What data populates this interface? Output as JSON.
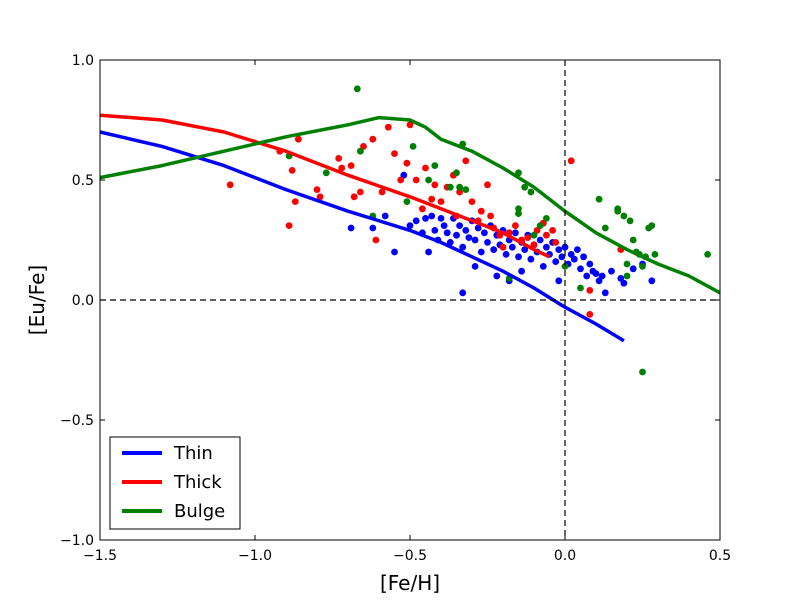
{
  "chart_data": {
    "type": "scatter",
    "title": "",
    "xlabel": "[Fe/H]",
    "ylabel": "[Eu/Fe]",
    "xlim": [
      -1.5,
      0.5
    ],
    "ylim": [
      -1.0,
      1.0
    ],
    "xticks": [
      -1.5,
      -1.0,
      -0.5,
      0.0,
      0.5
    ],
    "yticks": [
      -1.0,
      -0.5,
      0.0,
      0.5,
      1.0
    ],
    "xtick_labels": [
      "−1.5",
      "−1.0",
      "−0.5",
      "0.0",
      "0.5"
    ],
    "ytick_labels": [
      "−1.0",
      "−0.5",
      "0.0",
      "0.5",
      "1.0"
    ],
    "reference_lines": {
      "x": 0.0,
      "y": 0.0,
      "style": "dashed"
    },
    "legend": {
      "position": "lower-left",
      "entries": [
        {
          "label": "Thin",
          "color": "#0000ff"
        },
        {
          "label": "Thick",
          "color": "#ff0000"
        },
        {
          "label": "Bulge",
          "color": "#008000"
        }
      ]
    },
    "series": [
      {
        "name": "Thin",
        "color": "#0000ff",
        "curve": [
          [
            -1.5,
            0.7
          ],
          [
            -1.3,
            0.64
          ],
          [
            -1.1,
            0.56
          ],
          [
            -0.9,
            0.46
          ],
          [
            -0.7,
            0.37
          ],
          [
            -0.5,
            0.29
          ],
          [
            -0.4,
            0.24
          ],
          [
            -0.3,
            0.18
          ],
          [
            -0.2,
            0.12
          ],
          [
            -0.1,
            0.05
          ],
          [
            0.0,
            -0.03
          ],
          [
            0.1,
            -0.1
          ],
          [
            0.19,
            -0.17
          ]
        ],
        "points": [
          [
            -0.69,
            0.3
          ],
          [
            -0.62,
            0.3
          ],
          [
            -0.58,
            0.35
          ],
          [
            -0.55,
            0.2
          ],
          [
            -0.52,
            0.52
          ],
          [
            -0.5,
            0.31
          ],
          [
            -0.48,
            0.33
          ],
          [
            -0.46,
            0.28
          ],
          [
            -0.45,
            0.34
          ],
          [
            -0.44,
            0.2
          ],
          [
            -0.43,
            0.35
          ],
          [
            -0.42,
            0.29
          ],
          [
            -0.41,
            0.25
          ],
          [
            -0.4,
            0.34
          ],
          [
            -0.39,
            0.31
          ],
          [
            -0.38,
            0.28
          ],
          [
            -0.37,
            0.24
          ],
          [
            -0.36,
            0.34
          ],
          [
            -0.35,
            0.27
          ],
          [
            -0.34,
            0.31
          ],
          [
            -0.33,
            0.22
          ],
          [
            -0.32,
            0.29
          ],
          [
            -0.31,
            0.26
          ],
          [
            -0.3,
            0.33
          ],
          [
            -0.29,
            0.25
          ],
          [
            -0.28,
            0.3
          ],
          [
            -0.27,
            0.2
          ],
          [
            -0.26,
            0.28
          ],
          [
            -0.25,
            0.24
          ],
          [
            -0.24,
            0.31
          ],
          [
            -0.23,
            0.21
          ],
          [
            -0.22,
            0.27
          ],
          [
            -0.21,
            0.23
          ],
          [
            -0.2,
            0.29
          ],
          [
            -0.19,
            0.19
          ],
          [
            -0.18,
            0.25
          ],
          [
            -0.17,
            0.22
          ],
          [
            -0.16,
            0.28
          ],
          [
            -0.15,
            0.18
          ],
          [
            -0.14,
            0.24
          ],
          [
            -0.13,
            0.21
          ],
          [
            -0.12,
            0.27
          ],
          [
            -0.11,
            0.17
          ],
          [
            -0.1,
            0.23
          ],
          [
            -0.09,
            0.2
          ],
          [
            -0.08,
            0.25
          ],
          [
            -0.07,
            0.14
          ],
          [
            -0.06,
            0.22
          ],
          [
            -0.05,
            0.19
          ],
          [
            -0.04,
            0.24
          ],
          [
            -0.03,
            0.16
          ],
          [
            -0.02,
            0.21
          ],
          [
            -0.01,
            0.18
          ],
          [
            0.0,
            0.22
          ],
          [
            0.01,
            0.15
          ],
          [
            0.02,
            0.19
          ],
          [
            0.03,
            0.17
          ],
          [
            0.04,
            0.21
          ],
          [
            0.05,
            0.13
          ],
          [
            0.06,
            0.18
          ],
          [
            0.07,
            0.1
          ],
          [
            0.08,
            0.15
          ],
          [
            0.09,
            0.12
          ],
          [
            0.1,
            0.11
          ],
          [
            0.11,
            0.08
          ],
          [
            0.12,
            0.1
          ],
          [
            0.13,
            0.03
          ],
          [
            0.15,
            0.12
          ],
          [
            0.18,
            0.09
          ],
          [
            0.19,
            0.07
          ],
          [
            0.22,
            0.13
          ],
          [
            0.25,
            0.15
          ],
          [
            -0.33,
            0.03
          ],
          [
            -0.22,
            0.1
          ],
          [
            -0.18,
            0.08
          ],
          [
            -0.02,
            0.08
          ],
          [
            0.28,
            0.08
          ],
          [
            -0.14,
            0.12
          ],
          [
            -0.29,
            0.14
          ]
        ]
      },
      {
        "name": "Thick",
        "color": "#ff0000",
        "curve": [
          [
            -1.5,
            0.77
          ],
          [
            -1.3,
            0.75
          ],
          [
            -1.1,
            0.7
          ],
          [
            -0.9,
            0.62
          ],
          [
            -0.7,
            0.52
          ],
          [
            -0.5,
            0.43
          ],
          [
            -0.4,
            0.38
          ],
          [
            -0.3,
            0.33
          ],
          [
            -0.2,
            0.28
          ],
          [
            -0.1,
            0.21
          ],
          [
            -0.05,
            0.18
          ]
        ],
        "points": [
          [
            -1.08,
            0.48
          ],
          [
            -0.92,
            0.62
          ],
          [
            -0.89,
            0.31
          ],
          [
            -0.88,
            0.54
          ],
          [
            -0.87,
            0.41
          ],
          [
            -0.86,
            0.67
          ],
          [
            -0.8,
            0.46
          ],
          [
            -0.79,
            0.43
          ],
          [
            -0.73,
            0.59
          ],
          [
            -0.72,
            0.55
          ],
          [
            -0.69,
            0.56
          ],
          [
            -0.68,
            0.43
          ],
          [
            -0.66,
            0.45
          ],
          [
            -0.65,
            0.64
          ],
          [
            -0.62,
            0.67
          ],
          [
            -0.61,
            0.25
          ],
          [
            -0.59,
            0.45
          ],
          [
            -0.57,
            0.72
          ],
          [
            -0.55,
            0.61
          ],
          [
            -0.53,
            0.5
          ],
          [
            -0.51,
            0.57
          ],
          [
            -0.5,
            0.73
          ],
          [
            -0.48,
            0.5
          ],
          [
            -0.46,
            0.38
          ],
          [
            -0.45,
            0.55
          ],
          [
            -0.43,
            0.42
          ],
          [
            -0.42,
            0.48
          ],
          [
            -0.4,
            0.41
          ],
          [
            -0.38,
            0.47
          ],
          [
            -0.36,
            0.52
          ],
          [
            -0.35,
            0.35
          ],
          [
            -0.34,
            0.45
          ],
          [
            -0.32,
            0.58
          ],
          [
            -0.3,
            0.41
          ],
          [
            -0.28,
            0.33
          ],
          [
            -0.27,
            0.37
          ],
          [
            -0.25,
            0.48
          ],
          [
            -0.24,
            0.35
          ],
          [
            -0.23,
            0.3
          ],
          [
            -0.21,
            0.27
          ],
          [
            -0.2,
            0.22
          ],
          [
            -0.18,
            0.28
          ],
          [
            -0.16,
            0.31
          ],
          [
            -0.14,
            0.25
          ],
          [
            -0.12,
            0.26
          ],
          [
            -0.1,
            0.23
          ],
          [
            -0.09,
            0.29
          ],
          [
            -0.07,
            0.32
          ],
          [
            -0.06,
            0.27
          ],
          [
            -0.04,
            0.29
          ],
          [
            -0.03,
            0.24
          ],
          [
            0.02,
            0.58
          ],
          [
            0.08,
            0.04
          ],
          [
            0.08,
            -0.06
          ],
          [
            0.18,
            0.21
          ]
        ]
      },
      {
        "name": "Bulge",
        "color": "#008000",
        "curve": [
          [
            -1.5,
            0.51
          ],
          [
            -1.3,
            0.56
          ],
          [
            -1.1,
            0.62
          ],
          [
            -0.9,
            0.68
          ],
          [
            -0.7,
            0.73
          ],
          [
            -0.6,
            0.76
          ],
          [
            -0.5,
            0.75
          ],
          [
            -0.45,
            0.72
          ],
          [
            -0.4,
            0.67
          ],
          [
            -0.3,
            0.62
          ],
          [
            -0.2,
            0.55
          ],
          [
            -0.1,
            0.47
          ],
          [
            0.0,
            0.37
          ],
          [
            0.1,
            0.28
          ],
          [
            0.2,
            0.21
          ],
          [
            0.3,
            0.15
          ],
          [
            0.4,
            0.1
          ],
          [
            0.5,
            0.03
          ]
        ],
        "points": [
          [
            -0.67,
            0.88
          ],
          [
            -0.89,
            0.6
          ],
          [
            -0.77,
            0.53
          ],
          [
            -0.66,
            0.62
          ],
          [
            -0.62,
            0.35
          ],
          [
            -0.51,
            0.41
          ],
          [
            -0.49,
            0.64
          ],
          [
            -0.44,
            0.5
          ],
          [
            -0.42,
            0.56
          ],
          [
            -0.37,
            0.47
          ],
          [
            -0.35,
            0.53
          ],
          [
            -0.34,
            0.47
          ],
          [
            -0.33,
            0.65
          ],
          [
            -0.32,
            0.46
          ],
          [
            -0.15,
            0.53
          ],
          [
            -0.15,
            0.38
          ],
          [
            -0.15,
            0.36
          ],
          [
            -0.13,
            0.47
          ],
          [
            -0.11,
            0.45
          ],
          [
            -0.1,
            0.27
          ],
          [
            -0.08,
            0.31
          ],
          [
            -0.06,
            0.34
          ],
          [
            0.05,
            0.05
          ],
          [
            0.11,
            0.42
          ],
          [
            0.13,
            0.3
          ],
          [
            0.17,
            0.38
          ],
          [
            0.17,
            0.37
          ],
          [
            0.19,
            0.35
          ],
          [
            0.2,
            0.15
          ],
          [
            0.21,
            0.33
          ],
          [
            0.22,
            0.25
          ],
          [
            0.23,
            0.2
          ],
          [
            0.24,
            0.19
          ],
          [
            0.25,
            0.14
          ],
          [
            0.26,
            0.18
          ],
          [
            0.27,
            0.3
          ],
          [
            0.28,
            0.31
          ],
          [
            0.29,
            0.19
          ],
          [
            0.25,
            -0.3
          ],
          [
            0.46,
            0.19
          ],
          [
            0.2,
            0.1
          ],
          [
            -0.18,
            0.09
          ],
          [
            0.0,
            0.14
          ]
        ]
      }
    ]
  }
}
